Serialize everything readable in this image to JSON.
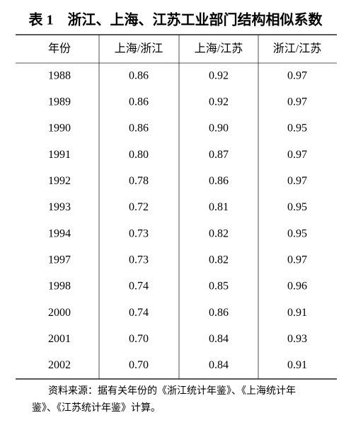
{
  "title": "表 1　浙江、上海、江苏工业部门结构相似系数",
  "table": {
    "header": [
      "年份",
      "上海/浙江",
      "上海/江苏",
      "浙江/江苏"
    ],
    "rows": [
      [
        "1988",
        "0.86",
        "0.92",
        "0.97"
      ],
      [
        "1989",
        "0.86",
        "0.92",
        "0.97"
      ],
      [
        "1990",
        "0.86",
        "0.90",
        "0.95"
      ],
      [
        "1991",
        "0.80",
        "0.87",
        "0.97"
      ],
      [
        "1992",
        "0.78",
        "0.86",
        "0.97"
      ],
      [
        "1993",
        "0.72",
        "0.81",
        "0.95"
      ],
      [
        "1994",
        "0.73",
        "0.82",
        "0.95"
      ],
      [
        "1997",
        "0.73",
        "0.82",
        "0.97"
      ],
      [
        "1998",
        "0.74",
        "0.85",
        "0.96"
      ],
      [
        "2000",
        "0.74",
        "0.86",
        "0.91"
      ],
      [
        "2001",
        "0.70",
        "0.84",
        "0.93"
      ],
      [
        "2002",
        "0.70",
        "0.84",
        "0.91"
      ]
    ]
  },
  "note": [
    "资料来源：据有关年份的《浙江统计年鉴》、《上海统计年",
    "鉴》、《江苏统计年鉴》计算。"
  ]
}
